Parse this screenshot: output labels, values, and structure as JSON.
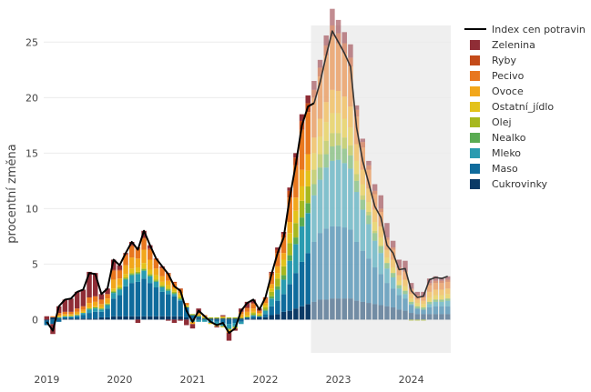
{
  "chart_data": {
    "type": "bar",
    "title": "",
    "xlabel": "",
    "ylabel": "procentní změna",
    "ylim": [
      -3,
      26.5
    ],
    "grid": true,
    "legend_position": "right",
    "x_ticks": [
      "2019",
      "2020",
      "2021",
      "2022",
      "2023",
      "2024"
    ],
    "y_ticks": [
      0,
      5,
      10,
      15,
      20,
      25
    ],
    "forecast_from_index": 44,
    "months": [
      "2019-01",
      "2019-02",
      "2019-03",
      "2019-04",
      "2019-05",
      "2019-06",
      "2019-07",
      "2019-08",
      "2019-09",
      "2019-10",
      "2019-11",
      "2019-12",
      "2020-01",
      "2020-02",
      "2020-03",
      "2020-04",
      "2020-05",
      "2020-06",
      "2020-07",
      "2020-08",
      "2020-09",
      "2020-10",
      "2020-11",
      "2020-12",
      "2021-01",
      "2021-02",
      "2021-03",
      "2021-04",
      "2021-05",
      "2021-06",
      "2021-07",
      "2021-08",
      "2021-09",
      "2021-10",
      "2021-11",
      "2021-12",
      "2022-01",
      "2022-02",
      "2022-03",
      "2022-04",
      "2022-05",
      "2022-06",
      "2022-07",
      "2022-08",
      "2022-09",
      "2022-10",
      "2022-11",
      "2022-12",
      "2023-01",
      "2023-02",
      "2023-03",
      "2023-04",
      "2023-05",
      "2023-06",
      "2023-07",
      "2023-08",
      "2023-09",
      "2023-10",
      "2023-11",
      "2023-12",
      "2024-01",
      "2024-02",
      "2024-03",
      "2024-04",
      "2024-05",
      "2024-06",
      "2024-07"
    ],
    "line": {
      "name": "Index cen potravin",
      "color": "#000000",
      "values": [
        -0.2,
        -1.0,
        1.2,
        1.8,
        1.9,
        2.5,
        2.7,
        4.2,
        4.1,
        2.3,
        2.8,
        5.4,
        4.9,
        6.0,
        7.0,
        6.3,
        8.0,
        6.7,
        5.5,
        4.8,
        4.1,
        3.0,
        2.6,
        0.8,
        -0.2,
        0.8,
        0.3,
        -0.2,
        -0.5,
        -0.3,
        -1.2,
        -0.8,
        0.8,
        1.5,
        1.8,
        0.9,
        2.0,
        4.1,
        6.0,
        7.4,
        11.0,
        14.0,
        17.5,
        19.2,
        19.5,
        21.4,
        23.8,
        26.0,
        25.0,
        24.0,
        22.8,
        17.3,
        14.3,
        12.3,
        10.2,
        9.2,
        6.7,
        6.0,
        4.5,
        4.6,
        2.6,
        2.0,
        2.1,
        3.6,
        3.8,
        3.7,
        3.9
      ]
    },
    "series": [
      {
        "name": "Cukrovinky",
        "color": "#0b3a66",
        "values": [
          -0.1,
          0.2,
          0.1,
          0.1,
          0.1,
          0.1,
          0.1,
          0.1,
          0.1,
          0.2,
          0.2,
          0.3,
          0.3,
          0.3,
          0.3,
          0.3,
          0.3,
          0.3,
          0.3,
          0.3,
          0.3,
          0.3,
          0.3,
          0.2,
          0.1,
          0.1,
          0.1,
          0.1,
          0.1,
          0.1,
          0.1,
          0.1,
          0.1,
          0.1,
          0.1,
          0.2,
          0.2,
          0.4,
          0.5,
          0.7,
          0.8,
          1.0,
          1.2,
          1.4,
          1.6,
          1.8,
          1.8,
          1.9,
          1.9,
          1.9,
          1.9,
          1.7,
          1.6,
          1.5,
          1.4,
          1.3,
          1.2,
          1.1,
          0.9,
          0.8,
          0.6,
          0.5,
          0.5,
          0.5,
          0.5,
          0.5,
          0.5
        ]
      },
      {
        "name": "Maso",
        "color": "#0f6b9c",
        "values": [
          -0.4,
          -0.4,
          -0.2,
          0.1,
          0.1,
          0.2,
          0.3,
          0.5,
          0.6,
          0.5,
          0.8,
          1.6,
          1.9,
          2.7,
          3.0,
          3.1,
          3.4,
          3.0,
          2.6,
          2.2,
          2.0,
          1.8,
          1.4,
          0.9,
          0.3,
          0.2,
          0.0,
          -0.1,
          -0.2,
          -0.3,
          -0.4,
          -0.3,
          -0.2,
          0.1,
          0.2,
          0.1,
          0.3,
          0.8,
          1.2,
          1.6,
          2.4,
          3.2,
          4.0,
          4.6,
          5.4,
          6.0,
          6.4,
          6.5,
          6.5,
          6.4,
          6.2,
          5.3,
          4.6,
          4.0,
          3.3,
          2.8,
          2.1,
          1.7,
          1.3,
          1.1,
          0.7,
          0.5,
          0.4,
          0.6,
          0.7,
          0.7,
          0.7
        ]
      },
      {
        "name": "Mleko",
        "color": "#2a9bb0",
        "values": [
          0.0,
          0.0,
          0.1,
          0.1,
          0.1,
          0.1,
          0.2,
          0.3,
          0.3,
          0.2,
          0.3,
          0.5,
          0.5,
          0.6,
          0.7,
          0.7,
          0.7,
          0.6,
          0.5,
          0.4,
          0.3,
          0.2,
          0.1,
          0.0,
          -0.2,
          -0.2,
          -0.2,
          -0.2,
          -0.3,
          -0.3,
          -0.4,
          -0.3,
          -0.2,
          0.0,
          0.1,
          0.0,
          0.3,
          0.7,
          1.0,
          1.3,
          2.1,
          2.6,
          3.2,
          3.6,
          4.2,
          4.8,
          5.5,
          5.9,
          6.0,
          5.8,
          5.5,
          4.5,
          3.7,
          3.1,
          2.4,
          1.9,
          1.3,
          1.0,
          0.6,
          0.4,
          0.1,
          0.0,
          0.0,
          0.3,
          0.4,
          0.4,
          0.5
        ]
      },
      {
        "name": "Nealko",
        "color": "#5aab52",
        "values": [
          0.0,
          0.0,
          0.0,
          0.0,
          0.0,
          0.0,
          0.0,
          0.1,
          0.1,
          0.1,
          0.1,
          0.1,
          0.1,
          0.1,
          0.1,
          0.1,
          0.1,
          0.1,
          0.1,
          0.1,
          0.1,
          0.1,
          0.1,
          0.0,
          0.0,
          0.0,
          0.0,
          0.0,
          0.0,
          0.0,
          -0.1,
          -0.1,
          0.0,
          0.0,
          0.0,
          0.0,
          0.1,
          0.2,
          0.3,
          0.4,
          0.5,
          0.6,
          0.8,
          0.9,
          1.0,
          1.1,
          1.2,
          1.3,
          1.3,
          1.3,
          1.2,
          1.0,
          0.9,
          0.8,
          0.7,
          0.6,
          0.5,
          0.4,
          0.3,
          0.3,
          0.2,
          0.2,
          0.2,
          0.2,
          0.2,
          0.2,
          0.2
        ]
      },
      {
        "name": "Olej",
        "color": "#a7b81f",
        "values": [
          0.0,
          0.0,
          0.0,
          0.0,
          0.0,
          0.0,
          0.0,
          0.0,
          0.0,
          0.0,
          0.0,
          0.1,
          0.1,
          0.1,
          0.1,
          0.1,
          0.1,
          0.1,
          0.1,
          0.1,
          0.1,
          0.1,
          0.1,
          0.1,
          0.1,
          0.1,
          0.1,
          0.1,
          0.1,
          0.1,
          0.1,
          0.1,
          0.1,
          0.1,
          0.2,
          0.1,
          0.2,
          0.4,
          0.7,
          0.8,
          1.1,
          1.3,
          1.5,
          1.5,
          1.3,
          1.2,
          1.2,
          1.2,
          1.1,
          1.0,
          0.9,
          0.6,
          0.4,
          0.3,
          0.2,
          0.1,
          0.0,
          0.0,
          0.0,
          0.0,
          -0.1,
          -0.1,
          -0.1,
          0.0,
          0.0,
          0.0,
          0.0
        ]
      },
      {
        "name": "Ostatní_jídlo",
        "color": "#e3c21b",
        "values": [
          0.0,
          0.0,
          0.1,
          0.1,
          0.1,
          0.1,
          0.1,
          0.1,
          0.1,
          0.1,
          0.1,
          0.2,
          0.2,
          0.3,
          0.4,
          0.4,
          0.5,
          0.4,
          0.4,
          0.3,
          0.3,
          0.2,
          0.2,
          0.1,
          0.0,
          0.0,
          0.0,
          -0.1,
          -0.1,
          -0.1,
          -0.1,
          -0.1,
          0.0,
          0.1,
          0.1,
          0.1,
          0.2,
          0.3,
          0.5,
          0.6,
          0.9,
          1.1,
          1.3,
          1.4,
          1.5,
          1.6,
          1.7,
          1.8,
          1.8,
          1.7,
          1.6,
          1.2,
          1.0,
          0.9,
          0.8,
          0.7,
          0.5,
          0.5,
          0.4,
          0.4,
          0.3,
          0.3,
          0.3,
          0.4,
          0.4,
          0.4,
          0.4
        ]
      },
      {
        "name": "Ovoce",
        "color": "#f2a71b",
        "values": [
          0.0,
          0.0,
          0.1,
          0.1,
          0.1,
          0.2,
          0.2,
          0.4,
          0.4,
          0.3,
          0.4,
          0.8,
          0.6,
          0.8,
          1.0,
          0.8,
          1.2,
          0.9,
          0.6,
          0.5,
          0.4,
          0.2,
          0.2,
          0.0,
          -0.2,
          0.1,
          0.1,
          0.0,
          0.0,
          0.1,
          -0.1,
          0.0,
          0.3,
          0.3,
          0.3,
          0.1,
          0.2,
          0.4,
          0.6,
          0.6,
          1.0,
          1.2,
          1.5,
          1.5,
          1.4,
          1.6,
          1.8,
          2.1,
          2.0,
          2.0,
          1.9,
          1.5,
          1.3,
          1.2,
          1.1,
          1.0,
          0.7,
          0.7,
          0.5,
          0.6,
          0.4,
          0.3,
          0.3,
          0.5,
          0.5,
          0.5,
          0.5
        ]
      },
      {
        "name": "Pecivo",
        "color": "#e8771f",
        "values": [
          0.0,
          0.1,
          0.2,
          0.2,
          0.2,
          0.3,
          0.3,
          0.5,
          0.5,
          0.4,
          0.4,
          0.8,
          0.7,
          0.9,
          1.0,
          0.9,
          1.0,
          0.9,
          0.8,
          0.7,
          0.6,
          0.4,
          0.3,
          0.2,
          0.0,
          0.1,
          0.1,
          0.0,
          0.0,
          0.0,
          -0.1,
          0.0,
          0.2,
          0.3,
          0.4,
          0.2,
          0.4,
          0.8,
          1.2,
          1.4,
          2.2,
          2.9,
          3.6,
          3.8,
          3.6,
          3.8,
          4.2,
          4.8,
          4.3,
          3.9,
          3.6,
          2.5,
          2.0,
          1.7,
          1.4,
          1.3,
          0.9,
          0.9,
          0.6,
          0.7,
          0.4,
          0.3,
          0.3,
          0.6,
          0.6,
          0.6,
          0.6
        ]
      },
      {
        "name": "Ryby",
        "color": "#c44b1a",
        "values": [
          0.0,
          0.0,
          0.0,
          0.0,
          0.0,
          0.0,
          0.0,
          0.0,
          0.0,
          0.0,
          0.0,
          0.1,
          0.1,
          0.1,
          0.1,
          0.1,
          0.1,
          0.1,
          0.1,
          0.1,
          0.1,
          0.1,
          0.1,
          0.0,
          0.0,
          0.0,
          0.0,
          0.0,
          0.0,
          0.0,
          0.0,
          0.0,
          0.0,
          0.1,
          0.1,
          0.0,
          0.1,
          0.2,
          0.3,
          0.3,
          0.6,
          0.7,
          0.8,
          0.8,
          0.7,
          0.8,
          0.9,
          1.0,
          0.9,
          0.9,
          0.8,
          0.6,
          0.5,
          0.4,
          0.3,
          0.3,
          0.2,
          0.2,
          0.1,
          0.1,
          0.1,
          0.1,
          0.1,
          0.2,
          0.2,
          0.2,
          0.2
        ]
      },
      {
        "name": "Zelenina",
        "color": "#8f2d36",
        "values": [
          0.3,
          -0.9,
          0.6,
          1.1,
          1.2,
          1.5,
          1.5,
          2.3,
          2.1,
          0.5,
          0.5,
          0.9,
          0.4,
          0.1,
          0.3,
          -0.3,
          0.6,
          0.3,
          0.0,
          0.1,
          -0.1,
          -0.3,
          -0.1,
          -0.5,
          -0.4,
          0.4,
          0.0,
          0.0,
          -0.1,
          0.1,
          -0.7,
          -0.2,
          0.3,
          0.5,
          0.3,
          0.2,
          0.0,
          0.1,
          0.2,
          0.2,
          0.3,
          0.4,
          0.6,
          0.7,
          0.8,
          0.7,
          0.9,
          1.5,
          1.2,
          1.0,
          1.2,
          0.4,
          0.3,
          0.4,
          0.6,
          1.2,
          1.3,
          0.6,
          0.7,
          0.9,
          0.5,
          0.3,
          0.4,
          0.4,
          0.4,
          0.3,
          0.3
        ]
      }
    ]
  }
}
